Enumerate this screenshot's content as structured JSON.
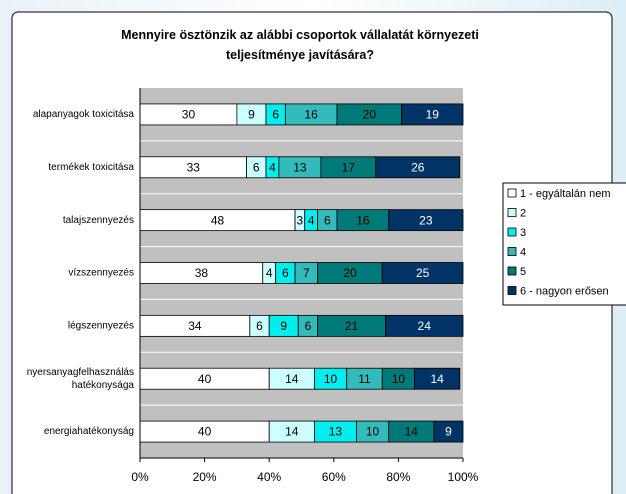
{
  "chart_data": {
    "type": "stacked_bar_horizontal",
    "title": "Mennyire ösztönzik az alábbi csoportok vállalatát környezeti teljesítménye javítására?",
    "categories": [
      "alapanyagok toxicitása",
      "termékek toxicitása",
      "talajszennyezés",
      "vízszennyezés",
      "légszennyezés",
      "nyersanyagfelhasználás hatékonysága",
      "energiahatékonyság"
    ],
    "series": [
      {
        "name": "1 - egyáltalán nem",
        "color": "#ffffff",
        "values": [
          30,
          33,
          48,
          38,
          34,
          40,
          40
        ]
      },
      {
        "name": "2",
        "color": "#ccffff",
        "values": [
          9,
          6,
          3,
          4,
          6,
          14,
          14
        ]
      },
      {
        "name": "3",
        "color": "#00eeee",
        "values": [
          6,
          4,
          4,
          6,
          9,
          10,
          13
        ]
      },
      {
        "name": "4",
        "color": "#33bbbb",
        "values": [
          16,
          13,
          6,
          7,
          6,
          11,
          10
        ]
      },
      {
        "name": "5",
        "color": "#007a78",
        "values": [
          20,
          17,
          16,
          20,
          21,
          10,
          14
        ]
      },
      {
        "name": "6 - nagyon erősen",
        "color": "#003366",
        "values": [
          19,
          26,
          23,
          25,
          24,
          14,
          9
        ]
      }
    ],
    "xlim": [
      0,
      100
    ],
    "xticks": [
      {
        "value": 0,
        "label": "0%"
      },
      {
        "value": 20,
        "label": "20%"
      },
      {
        "value": 40,
        "label": "40%"
      },
      {
        "value": 60,
        "label": "60%"
      },
      {
        "value": 80,
        "label": "80%"
      },
      {
        "value": 100,
        "label": "100%"
      }
    ]
  }
}
